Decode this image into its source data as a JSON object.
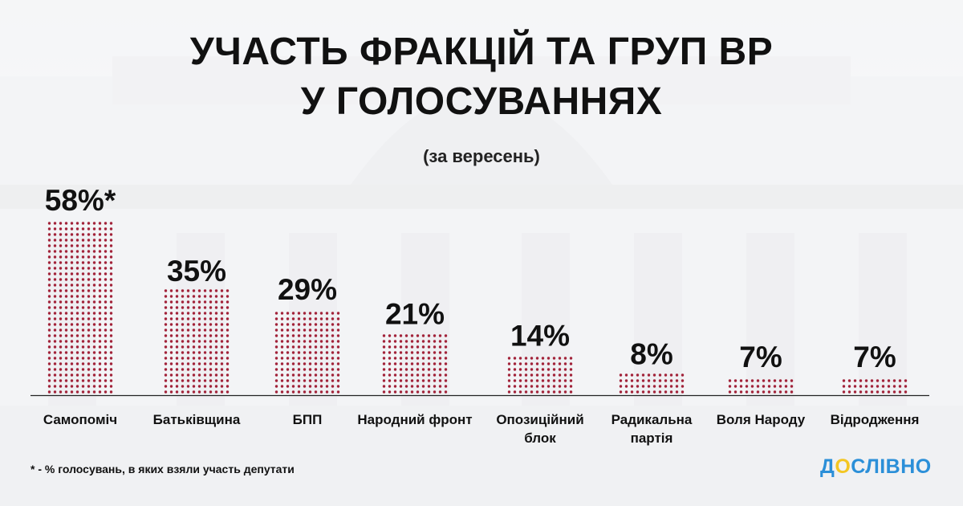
{
  "title_line1": "УЧАСТЬ ФРАКЦІЙ ТА ГРУП ВР",
  "title_line2": "У ГОЛОСУВАННЯХ",
  "subtitle": "(за вересень)",
  "footnote": "* - % голосувань, в яких взяли участь депутати",
  "logo": {
    "first": "Д",
    "accent": "О",
    "rest": "СЛІВНО"
  },
  "colors": {
    "dots": "#a2233a",
    "text": "#111111",
    "logo_blue": "#2b8fd8",
    "logo_yellow": "#f3c623"
  },
  "chart_data": {
    "type": "bar",
    "title": "УЧАСТЬ ФРАКЦІЙ ТА ГРУП ВР У ГОЛОСУВАННЯХ",
    "subtitle": "(за вересень)",
    "categories": [
      [
        "Самопоміч"
      ],
      [
        "Батьківщина"
      ],
      [
        "БПП"
      ],
      [
        "Народний фронт"
      ],
      [
        "Опозиційний",
        "блок"
      ],
      [
        "Радикальна",
        "партія"
      ],
      [
        "Воля Народу"
      ],
      [
        "Відродження"
      ]
    ],
    "values": [
      58,
      35,
      29,
      21,
      14,
      8,
      7,
      7
    ],
    "data_labels": [
      "58%*",
      "35%",
      "29%",
      "21%",
      "14%",
      "8%",
      "7%",
      "7%"
    ],
    "unit": "%",
    "ylim": [
      0,
      58
    ],
    "grid": false,
    "legend": "none"
  }
}
